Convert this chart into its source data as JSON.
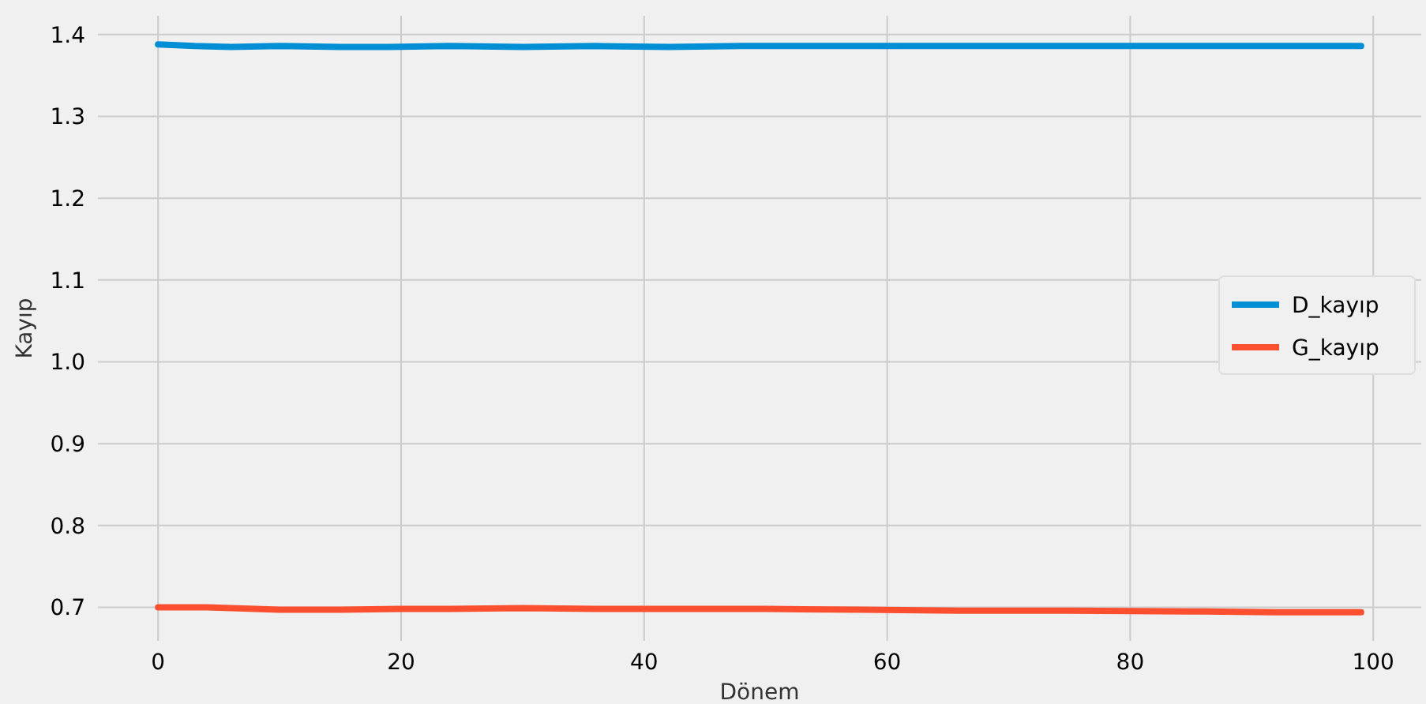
{
  "chart_data": {
    "type": "line",
    "xlabel": "Dönem",
    "ylabel": "Kayıp",
    "xlim": [
      -4.95,
      103.95
    ],
    "ylim": [
      0.659,
      1.423
    ],
    "xticks": [
      0,
      20,
      40,
      60,
      80,
      100
    ],
    "yticks": [
      0.7,
      0.8,
      0.9,
      {
        "value": 1.0,
        "label": "1.0"
      },
      1.1,
      1.2,
      1.3,
      1.4
    ],
    "grid": true,
    "legend": "right",
    "marker": "none",
    "line_style": "solid",
    "series": [
      {
        "name": "D_kayıp",
        "color": "#008fd5",
        "x": [
          0,
          3,
          6,
          10,
          15,
          19,
          24,
          30,
          36,
          42,
          48,
          55,
          62,
          70,
          80,
          90,
          99
        ],
        "values": [
          1.388,
          1.386,
          1.385,
          1.386,
          1.385,
          1.385,
          1.386,
          1.385,
          1.386,
          1.385,
          1.386,
          1.386,
          1.386,
          1.386,
          1.386,
          1.386,
          1.386
        ]
      },
      {
        "name": "G_kayıp",
        "color": "#fc4f30",
        "x": [
          0,
          4,
          10,
          15,
          20,
          24,
          30,
          36,
          42,
          50,
          58,
          66,
          75,
          85,
          92,
          99
        ],
        "values": [
          0.7,
          0.7,
          0.697,
          0.697,
          0.698,
          0.698,
          0.699,
          0.698,
          0.698,
          0.698,
          0.697,
          0.696,
          0.696,
          0.695,
          0.694,
          0.694
        ]
      }
    ]
  }
}
